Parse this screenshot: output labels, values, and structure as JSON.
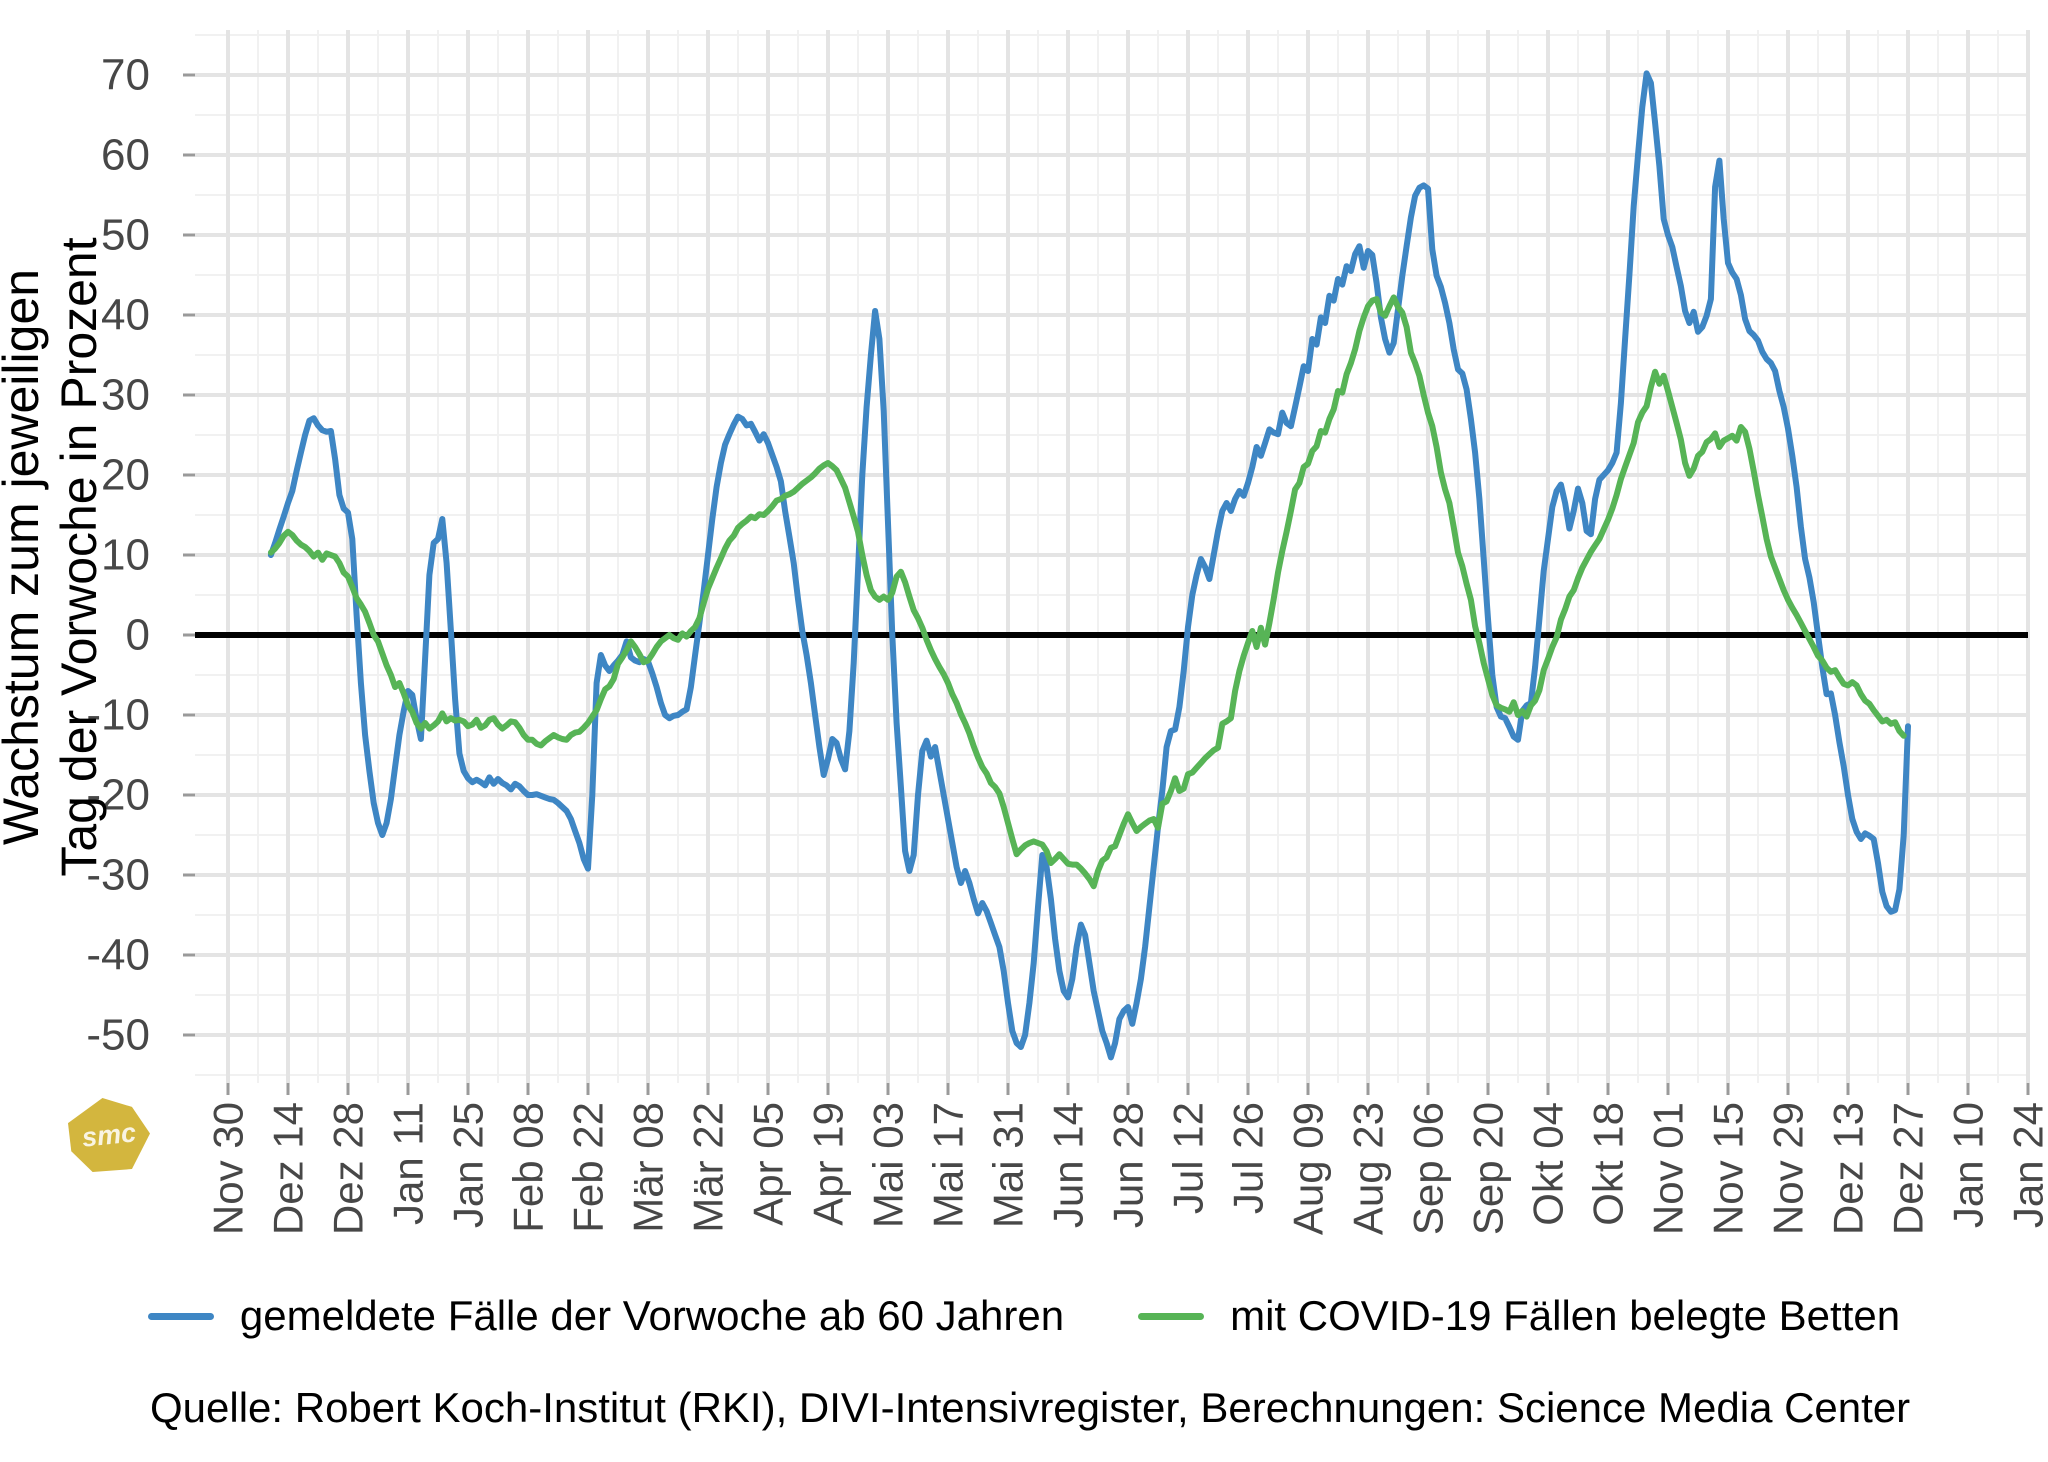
{
  "y_axis": {
    "title_line1": "Wachstum zum jeweiligen",
    "title_line2": "Tag der Vorwoche in Prozent",
    "ticks": [
      70,
      60,
      50,
      40,
      30,
      20,
      10,
      0,
      -10,
      -20,
      -30,
      -40,
      -50
    ]
  },
  "x_axis": {
    "ticks": [
      "Nov 30",
      "Dez 14",
      "Dez 28",
      "Jan 11",
      "Jan 25",
      "Feb 08",
      "Feb 22",
      "Mär 08",
      "Mär 22",
      "Apr 05",
      "Apr 19",
      "Mai 03",
      "Mai 17",
      "Mai 31",
      "Jun 14",
      "Jun 28",
      "Jul 12",
      "Jul 26",
      "Aug 09",
      "Aug 23",
      "Sep 06",
      "Sep 20",
      "Okt 04",
      "Okt 18",
      "Nov 01",
      "Nov 15",
      "Nov 29",
      "Dez 13",
      "Dez 27",
      "Jan 10",
      "Jan 24"
    ]
  },
  "legend": [
    {
      "label": "gemeldete Fälle der Vorwoche ab 60 Jahren",
      "color": "#3e86c4"
    },
    {
      "label": "mit COVID-19 Fällen belegte Betten",
      "color": "#57b456"
    }
  ],
  "source": "Quelle: Robert Koch-Institut (RKI), DIVI-Intensivregister, Berechnungen: Science Media Center",
  "logo_text": "smc",
  "chart_data": {
    "type": "line",
    "title": "",
    "ylabel": "Wachstum zum jeweiligen Tag der Vorwoche in Prozent",
    "ylim": [
      -56,
      75
    ],
    "grid": true,
    "zero_line": {
      "show": true,
      "color": "#000000"
    },
    "x_tick_labels": [
      "Nov 30",
      "Dez 14",
      "Dez 28",
      "Jan 11",
      "Jan 25",
      "Feb 08",
      "Feb 22",
      "Mär 08",
      "Mär 22",
      "Apr 05",
      "Apr 19",
      "Mai 03",
      "Mai 17",
      "Mai 31",
      "Jun 14",
      "Jun 28",
      "Jul 12",
      "Jul 26",
      "Aug 09",
      "Aug 23",
      "Sep 06",
      "Sep 20",
      "Okt 04",
      "Okt 18",
      "Nov 01",
      "Nov 15",
      "Nov 29",
      "Dez 13",
      "Dez 27",
      "Jan 10",
      "Jan 24"
    ],
    "x_tick_spacing_days": 14,
    "x_domain_days": [
      0,
      420
    ],
    "y_ticks": [
      70,
      60,
      50,
      40,
      30,
      20,
      10,
      0,
      -10,
      -20,
      -30,
      -40,
      -50
    ],
    "legend_position": "bottom-center",
    "series": [
      {
        "name": "gemeldete Fälle der Vorwoche ab 60 Jahren",
        "color": "#3e86c4",
        "start_day": 10,
        "step_days": 1,
        "values": [
          10,
          11.5,
          13.2,
          14.8,
          16.5,
          18,
          20.5,
          22.8,
          25,
          26.8,
          27.1,
          26.2,
          25.6,
          25.4,
          25.5,
          22,
          17.5,
          15.8,
          15.3,
          12,
          2.5,
          -6,
          -12.5,
          -17,
          -21,
          -23.5,
          -25,
          -23.5,
          -20.5,
          -16.5,
          -12.5,
          -9.5,
          -7,
          -7.5,
          -10.5,
          -13,
          -3,
          7.5,
          11.5,
          12,
          14.5,
          9,
          0.5,
          -8,
          -14.8,
          -17,
          -17.9,
          -18.4,
          -18.1,
          -18.4,
          -18.8,
          -17.8,
          -18.6,
          -18,
          -18.5,
          -18.8,
          -19.3,
          -18.6,
          -18.9,
          -19.5,
          -20,
          -20,
          -19.9,
          -20.1,
          -20.3,
          -20.5,
          -20.6,
          -21,
          -21.5,
          -22,
          -23,
          -24.5,
          -26,
          -28,
          -29.2,
          -20,
          -6,
          -2.5,
          -3.8,
          -4.5,
          -3.8,
          -3.2,
          -2.5,
          -0.8,
          -2.8,
          -3.2,
          -3.4,
          -3,
          -3.3,
          -4.8,
          -6.5,
          -8.5,
          -10,
          -10.4,
          -10.1,
          -10,
          -9.6,
          -9.3,
          -6.5,
          -2.5,
          1.5,
          5.5,
          10,
          14.5,
          18.5,
          21.5,
          23.8,
          25.1,
          26.3,
          27.3,
          27,
          26.2,
          26.4,
          25.4,
          24.3,
          25.1,
          24,
          22.5,
          21,
          19.2,
          15.5,
          12.3,
          9,
          4.5,
          0.5,
          -2.5,
          -6,
          -10,
          -14,
          -17.5,
          -15.5,
          -13,
          -13.5,
          -15.5,
          -16.8,
          -12,
          -3.5,
          8,
          20,
          28.5,
          35,
          40.5,
          37,
          28,
          14,
          0,
          -11,
          -19,
          -27,
          -29.5,
          -27.5,
          -20,
          -14.5,
          -13.2,
          -15.2,
          -14,
          -17,
          -20,
          -23,
          -26,
          -29,
          -31,
          -29.5,
          -31,
          -33,
          -34.8,
          -33.5,
          -34.5,
          -36,
          -37.5,
          -39,
          -42,
          -46,
          -49.5,
          -51,
          -51.5,
          -50,
          -46,
          -41,
          -34,
          -27.5,
          -29,
          -33,
          -38,
          -42,
          -44.5,
          -45.3,
          -43,
          -39,
          -36.2,
          -37.5,
          -41,
          -44.5,
          -47,
          -49.5,
          -51,
          -52.8,
          -51,
          -48,
          -47,
          -46.5,
          -48.6,
          -46,
          -43,
          -39,
          -34,
          -29,
          -24,
          -19.5,
          -14,
          -12,
          -11.8,
          -9,
          -4.5,
          1,
          5,
          7.5,
          9.5,
          8.5,
          7,
          10,
          13,
          15.5,
          16.5,
          15.5,
          17,
          18,
          17.4,
          19,
          21,
          23.5,
          22.4,
          24,
          25.7,
          25.3,
          25.1,
          27.8,
          26.5,
          26.1,
          28.5,
          31,
          33.6,
          33,
          37,
          36.3,
          39.7,
          39,
          42.4,
          41.8,
          44.5,
          43.8,
          46.1,
          45.5,
          47.6,
          48.6,
          45.9,
          48,
          47.5,
          44,
          39.7,
          37,
          35.3,
          36.5,
          40.7,
          44.9,
          48.6,
          52.2,
          54.9,
          55.9,
          56.2,
          55.8,
          48.2,
          44.9,
          43.5,
          41.5,
          39,
          35.7,
          33.2,
          32.7,
          30.7,
          27,
          22.8,
          17,
          9.5,
          2,
          -5,
          -9,
          -10.2,
          -10.4,
          -11.5,
          -12.7,
          -13.1,
          -9.5,
          -8.8,
          -8.5,
          -4,
          2,
          8,
          12,
          16,
          18,
          18.8,
          16.5,
          13.3,
          15.5,
          18.3,
          16.5,
          13,
          12.6,
          17,
          19.4,
          20,
          20.6,
          21.5,
          22.8,
          29,
          37,
          45,
          53.6,
          60,
          66,
          70.2,
          69,
          64,
          58.6,
          52,
          50,
          48.5,
          46,
          43.6,
          40.5,
          39,
          40.4,
          37.9,
          38.5,
          39.9,
          42,
          56,
          59.3,
          52,
          46.5,
          45.3,
          44.5,
          42.5,
          39.5,
          38,
          37.5,
          36.8,
          35.4,
          34.5,
          34,
          33,
          30.5,
          28.5,
          25.8,
          22.4,
          18.5,
          13.5,
          9.5,
          7.2,
          4.1,
          0,
          -4,
          -7.4,
          -7.3,
          -10,
          -13.4,
          -16.4,
          -20,
          -23,
          -24.6,
          -25.5,
          -24.8,
          -25.1,
          -25.5,
          -28.5,
          -32.1,
          -33.9,
          -34.6,
          -34.4,
          -31.8,
          -25,
          -11.4
        ]
      },
      {
        "name": "mit COVID-19 Fällen belegte Betten",
        "color": "#57b456",
        "start_day": 10,
        "step_days": 1,
        "values": [
          10.3,
          10.8,
          11.5,
          12.4,
          12.9,
          12.5,
          11.8,
          11.3,
          11,
          10.5,
          9.8,
          10.3,
          9.4,
          10.2,
          10,
          9.8,
          9,
          7.8,
          7.3,
          6,
          4.6,
          3.8,
          2.9,
          1.5,
          0,
          -0.8,
          -2.3,
          -3.8,
          -5,
          -6.5,
          -6,
          -7.3,
          -8.8,
          -9.6,
          -11,
          -11.7,
          -11,
          -11.7,
          -11.3,
          -10.8,
          -9.8,
          -10.8,
          -10.4,
          -10.7,
          -10.6,
          -10.8,
          -11.4,
          -11.2,
          -10.6,
          -11.6,
          -11.3,
          -10.6,
          -10.4,
          -11.2,
          -11.7,
          -11.3,
          -10.8,
          -10.9,
          -11.6,
          -12.5,
          -13.1,
          -13.1,
          -13.6,
          -13.8,
          -13.3,
          -12.9,
          -12.5,
          -12.8,
          -13,
          -13.1,
          -12.5,
          -12.2,
          -12.1,
          -11.6,
          -11,
          -10.2,
          -9.4,
          -8,
          -6.8,
          -6.4,
          -5.5,
          -3.6,
          -2.8,
          -1.9,
          -0.8,
          -1.5,
          -2.4,
          -3.4,
          -3.2,
          -2.4,
          -1.5,
          -0.8,
          -0.4,
          0,
          -0.4,
          -0.6,
          0.2,
          -0.2,
          0.5,
          1,
          2.1,
          4,
          5.8,
          7.1,
          8.4,
          9.6,
          10.8,
          11.8,
          12.4,
          13.4,
          13.9,
          14.3,
          14.8,
          14.6,
          15.1,
          15,
          15.5,
          16.1,
          16.8,
          17,
          17.4,
          17.6,
          17.9,
          18.4,
          18.9,
          19.3,
          19.7,
          20.2,
          20.8,
          21.2,
          21.5,
          21.1,
          20.6,
          19.5,
          18.4,
          16.6,
          14.8,
          12.9,
          10,
          7.5,
          5.6,
          4.8,
          4.4,
          4.8,
          4.4,
          5.3,
          7.3,
          7.9,
          6.6,
          4.8,
          3.1,
          2.1,
          0.9,
          -0.6,
          -1.9,
          -3,
          -4,
          -4.9,
          -6,
          -7.4,
          -8.5,
          -9.9,
          -11,
          -12.3,
          -13.9,
          -15.3,
          -16.5,
          -17.3,
          -18.5,
          -19,
          -19.8,
          -21.5,
          -23.5,
          -25.5,
          -27.4,
          -26.8,
          -26.3,
          -26,
          -25.8,
          -26,
          -26.2,
          -27,
          -28.5,
          -28,
          -27.4,
          -28,
          -28.6,
          -28.7,
          -28.7,
          -29.2,
          -29.8,
          -30.5,
          -31.4,
          -29.5,
          -28.2,
          -27.8,
          -26.6,
          -26.4,
          -25,
          -23.6,
          -22.4,
          -23.5,
          -24.5,
          -24,
          -23.6,
          -23.2,
          -23,
          -24.1,
          -21.1,
          -20.8,
          -19.5,
          -17.9,
          -19.5,
          -19.2,
          -17.4,
          -17.2,
          -16.6,
          -16,
          -15.4,
          -14.9,
          -14.4,
          -14.1,
          -11.1,
          -10.8,
          -10.4,
          -7,
          -4.5,
          -2.6,
          -1,
          0.5,
          -1.5,
          0.9,
          -1.2,
          1.5,
          4.5,
          7.8,
          10.5,
          12.9,
          15.5,
          18.2,
          19,
          21,
          21.4,
          23,
          23.6,
          25.5,
          25.3,
          27,
          28.2,
          30.5,
          30.3,
          32.6,
          34,
          35.7,
          38,
          39.7,
          41.1,
          41.8,
          42,
          40.3,
          39.9,
          41.1,
          42.2,
          41,
          40.3,
          38.5,
          35.3,
          34,
          32.4,
          30,
          27.8,
          26.1,
          23.5,
          20.3,
          18.2,
          16.5,
          13.5,
          10.3,
          8.6,
          6.4,
          4.4,
          1.1,
          -1,
          -3.5,
          -5.5,
          -7.5,
          -8.8,
          -9.1,
          -9.3,
          -9.6,
          -8.4,
          -10,
          -9.5,
          -10.2,
          -8.8,
          -8.2,
          -6.9,
          -4.4,
          -3,
          -1.5,
          -0.3,
          1.9,
          3.2,
          4.8,
          5.6,
          7.1,
          8.4,
          9.4,
          10.4,
          11.2,
          12,
          13.2,
          14.4,
          15.8,
          17.5,
          19.5,
          21,
          22.5,
          24,
          26.6,
          27.8,
          28.6,
          31,
          32.9,
          31.4,
          32.4,
          30.5,
          28.5,
          26.5,
          24.4,
          21.5,
          19.9,
          20.8,
          22.4,
          22.9,
          24.1,
          24.5,
          25.2,
          23.5,
          24.3,
          24.6,
          24.9,
          24.3,
          26,
          25.4,
          23.3,
          20.5,
          17.5,
          14.8,
          12,
          9.8,
          8.4,
          7,
          5.6,
          4.4,
          3.4,
          2.5,
          1.5,
          0.5,
          -0.5,
          -1.5,
          -2.6,
          -3.2,
          -4.1,
          -4.6,
          -4.4,
          -5.3,
          -6.1,
          -6.3,
          -5.9,
          -6.3,
          -7.4,
          -8.2,
          -8.6,
          -9.4,
          -10.1,
          -10.8,
          -10.6,
          -11.1,
          -10.9,
          -12,
          -12.6
        ]
      }
    ]
  }
}
